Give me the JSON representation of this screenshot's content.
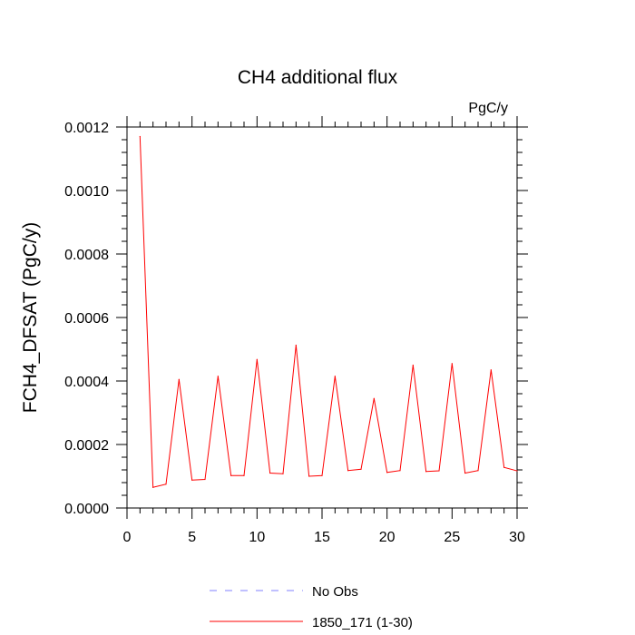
{
  "chart_data": {
    "type": "line",
    "title": "CH4 additional flux",
    "units": "PgC/y",
    "ylabel": "FCH4_DFSAT  (PgC/y)",
    "xlabel": "",
    "xlim": [
      0,
      30
    ],
    "ylim": [
      0,
      0.0012
    ],
    "x_ticks": [
      0,
      5,
      10,
      15,
      20,
      25,
      30
    ],
    "x_tick_labels": [
      "0",
      "5",
      "10",
      "15",
      "20",
      "25",
      "30"
    ],
    "y_ticks": [
      0,
      0.0002,
      0.0004,
      0.0006,
      0.0008,
      0.001,
      0.0012
    ],
    "y_tick_labels": [
      "0.0000",
      "0.0002",
      "0.0004",
      "0.0006",
      "0.0008",
      "0.0010",
      "0.0012"
    ],
    "grid": false,
    "legend_position": "bottom",
    "series": [
      {
        "name": "No Obs",
        "color": "#8080ff",
        "dash": "dashed",
        "x": [],
        "values": []
      },
      {
        "name": "1850_171 (1-30)",
        "color": "#ff0000",
        "dash": "solid",
        "x": [
          1,
          2,
          3,
          4,
          5,
          6,
          7,
          8,
          9,
          10,
          11,
          12,
          13,
          14,
          15,
          16,
          17,
          18,
          19,
          20,
          21,
          22,
          23,
          24,
          25,
          26,
          27,
          28,
          29,
          30
        ],
        "values": [
          0.00117,
          6.5e-05,
          7.5e-05,
          0.000405,
          8.8e-05,
          9e-05,
          0.000415,
          0.000102,
          0.000102,
          0.000468,
          0.00011,
          0.000108,
          0.000513,
          0.0001,
          0.000102,
          0.000415,
          0.000118,
          0.000122,
          0.000345,
          0.000112,
          0.000118,
          0.00045,
          0.000115,
          0.000117,
          0.000455,
          0.00011,
          0.000118,
          0.000435,
          0.000128,
          0.000117
        ]
      }
    ]
  }
}
